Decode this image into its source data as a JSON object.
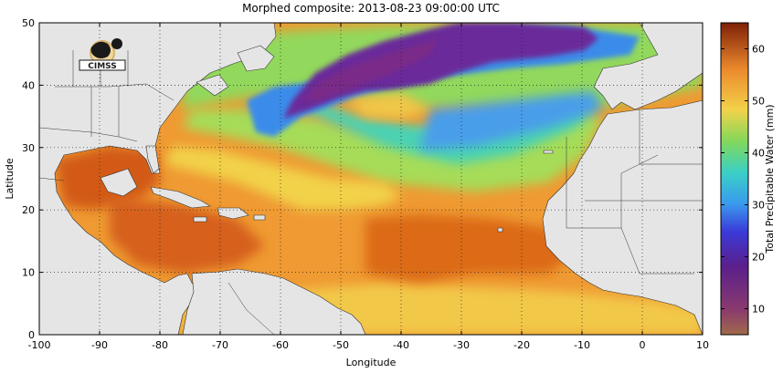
{
  "map": {
    "title": "Morphed composite: 2013-08-23 09:00:00 UTC",
    "x_axis": {
      "label": "Longitude",
      "ticks": [
        "-100",
        "-90",
        "-80",
        "-70",
        "-60",
        "-50",
        "-40",
        "-30",
        "-20",
        "-10",
        "0",
        "10"
      ],
      "range": [
        -100,
        10
      ]
    },
    "y_axis": {
      "label": "Latitude",
      "ticks": [
        "0",
        "10",
        "20",
        "30",
        "40",
        "50"
      ],
      "range": [
        0,
        50
      ]
    },
    "colorbar": {
      "label": "Total Precipitable Water (mm)",
      "ticks": [
        "10",
        "20",
        "30",
        "40",
        "50",
        "60"
      ],
      "range": [
        5,
        65
      ],
      "colormap": "purple-blue-cyan-green-yellow-orange-brown"
    },
    "logo_text": "CIMSS",
    "gridlines": "dotted",
    "land_color": "#e5e5e5",
    "ocean_colors": {
      "very_moist": "#c8500f",
      "moist": "#e98a2b",
      "medium": "#f2d24a",
      "mid": "#92d85b",
      "lower": "#48d2b4",
      "dry": "#3a8cea",
      "very_dry": "#6a2a9a"
    }
  }
}
